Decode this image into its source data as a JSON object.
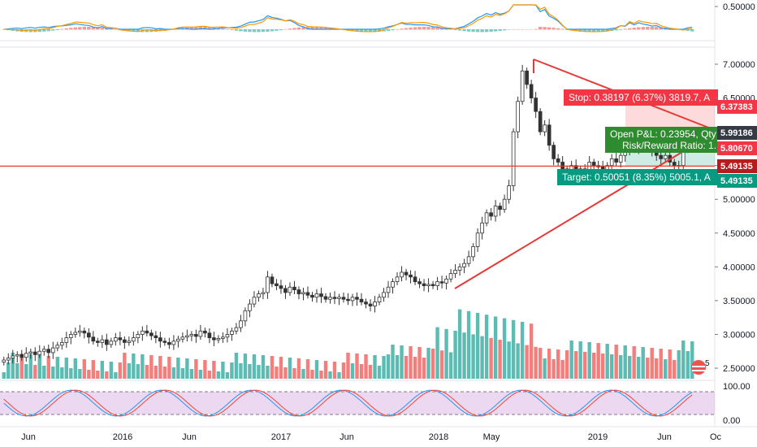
{
  "colors": {
    "up": "#26a69a",
    "down": "#ef5350",
    "line": "#e53935",
    "stop_flag": "#f23645",
    "target_flag": "#089981",
    "pnl_flag": "#2e8b30",
    "dark_tag": "#363a45",
    "macd_line": "#2196f3",
    "signal_line": "#ff9800",
    "stoch_k": "#2196f3",
    "stoch_d": "#f44336",
    "stoch_band": "#e1bee7"
  },
  "price_axis": {
    "labels": [
      "7.00000",
      "6.50000",
      "6.00000",
      "5.50000",
      "5.00000",
      "4.50000",
      "4.00000",
      "3.50000",
      "3.00000",
      "2.50000"
    ],
    "range": [
      2.2,
      7.5
    ]
  },
  "macd_axis": {
    "labels": [
      "0.50000"
    ]
  },
  "stoch_axis": {
    "labels": [
      "100.00",
      "0.00"
    ]
  },
  "time_axis": {
    "labels": [
      "Jun",
      "2016",
      "Jun",
      "2017",
      "Jun",
      "2018",
      "May",
      "2019",
      "Jun",
      "Oc"
    ]
  },
  "price_tags": {
    "stop": "6.37383",
    "current": "5.99186",
    "entry": "5.80670",
    "line": "5.49135",
    "target": "5.49135"
  },
  "flags": {
    "stop": "Stop: 0.38197 (6.37%) 3819.7, A",
    "pnl": "Open P&L: 0.23954, Qty",
    "rr": "Risk/Reward Ratio: 1.",
    "target": "Target: 0.50051 (8.35%) 5005.1, A"
  },
  "events_badge": "5",
  "chart_data": {
    "type": "candlestick",
    "interval": "weekly",
    "price_range": [
      2.2,
      7.5
    ],
    "series": [
      {
        "name": "",
        "close": [
          2.62,
          2.65,
          2.68,
          2.7,
          2.66,
          2.72,
          2.74,
          2.7,
          2.75,
          2.78,
          2.73,
          2.8,
          2.84,
          2.88,
          2.95,
          3.0,
          3.03,
          3.05,
          3.02,
          2.96,
          2.9,
          2.88,
          2.92,
          2.85,
          2.9,
          2.95,
          2.92,
          2.88,
          2.9,
          2.95,
          3.0,
          3.05,
          3.02,
          2.98,
          2.95,
          2.9,
          2.88,
          2.85,
          2.9,
          2.93,
          2.96,
          2.98,
          3.0,
          2.97,
          3.05,
          3.02,
          2.95,
          2.92,
          2.94,
          2.96,
          3.0,
          3.05,
          3.1,
          3.2,
          3.35,
          3.45,
          3.55,
          3.6,
          3.62,
          3.85,
          3.75,
          3.72,
          3.68,
          3.62,
          3.7,
          3.66,
          3.6,
          3.62,
          3.58,
          3.55,
          3.6,
          3.56,
          3.52,
          3.55,
          3.53,
          3.55,
          3.52,
          3.5,
          3.55,
          3.52,
          3.48,
          3.45,
          3.42,
          3.48,
          3.55,
          3.62,
          3.7,
          3.78,
          3.85,
          3.92,
          3.88,
          3.85,
          3.78,
          3.75,
          3.72,
          3.74,
          3.72,
          3.78,
          3.76,
          3.82,
          3.9,
          3.95,
          4.0,
          4.05,
          4.15,
          4.3,
          4.5,
          4.65,
          4.8,
          4.75,
          4.9,
          4.85,
          5.0,
          5.2,
          6.0,
          6.45,
          6.9,
          6.7,
          6.5,
          6.3,
          6.0,
          6.1,
          5.8,
          5.6,
          5.55,
          5.45,
          5.4,
          5.5,
          5.35,
          5.45,
          5.4,
          5.55,
          5.5,
          5.48,
          5.4,
          5.5,
          5.6,
          5.55,
          5.65,
          5.7,
          5.8,
          5.75,
          5.85,
          5.9,
          5.8,
          5.7,
          5.65,
          5.6,
          5.65,
          5.55,
          5.5,
          5.5,
          5.75,
          5.85,
          5.99
        ]
      }
    ],
    "volume_scale": [
      0,
      1
    ],
    "annotations": [
      "triangle",
      "long-position"
    ]
  }
}
